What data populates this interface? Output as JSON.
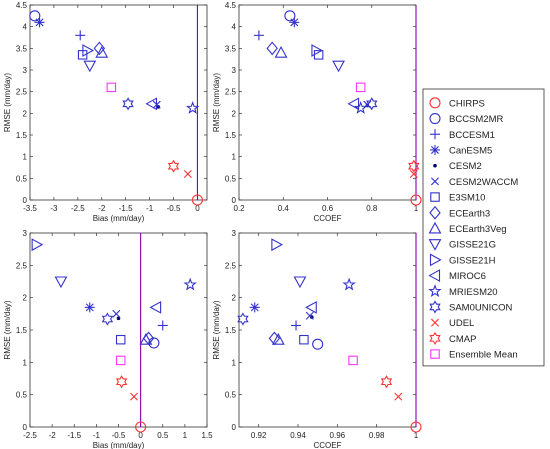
{
  "chart_data": [
    {
      "type": "scatter",
      "xlabel": "Bias (mm/day)",
      "ylabel": "RMSE (mm/day)",
      "xlim": [
        -3.5,
        0.2
      ],
      "ylim": [
        0,
        4.5
      ],
      "grid": false,
      "xticks": [
        -3.5,
        -3,
        -2.5,
        -2,
        -1.5,
        -1,
        -0.5,
        0
      ],
      "xtick_labels": [
        "-3.5",
        "-3",
        "-2.5",
        "-2",
        "-1.5",
        "-1",
        "-0.5",
        "0"
      ],
      "yticks": [
        0,
        0.5,
        1,
        1.5,
        2,
        2.5,
        3,
        3.5,
        4,
        4.5
      ],
      "ytick_labels": [
        "0",
        "0.5",
        "1",
        "1.5",
        "2",
        "2.5",
        "3",
        "3.5",
        "4",
        "4.5"
      ],
      "refline": {
        "axis": "x",
        "value": 0
      },
      "points": {
        "CHIRPS": [
          0,
          0
        ],
        "BCCSM2MR": [
          -3.4,
          4.25
        ],
        "BCCESM1": [
          -2.45,
          3.8
        ],
        "CanESM5": [
          -3.3,
          4.1
        ],
        "CESM2": [
          -0.82,
          2.15
        ],
        "CESM2WACCM": [
          -0.85,
          2.2
        ],
        "E3SM10": [
          -2.4,
          3.35
        ],
        "ECEarth3": [
          -2.05,
          3.5
        ],
        "ECEarth3Veg": [
          -2.0,
          3.4
        ],
        "GISSE21G": [
          -2.25,
          3.1
        ],
        "GISSE21H": [
          -2.3,
          3.45
        ],
        "MIROC6": [
          -0.95,
          2.22
        ],
        "MRIESM20": [
          -0.1,
          2.12
        ],
        "SAM0UNICON": [
          -1.45,
          2.22
        ],
        "UDEL": [
          -0.2,
          0.6
        ],
        "CMAP": [
          -0.5,
          0.78
        ],
        "Ensemble Mean": [
          -1.8,
          2.6
        ]
      }
    },
    {
      "type": "scatter",
      "xlabel": "CCOEF",
      "ylabel": "RMSE (mm/day)",
      "xlim": [
        0.2,
        1
      ],
      "ylim": [
        0,
        4.5
      ],
      "grid": false,
      "xticks": [
        0.2,
        0.4,
        0.6,
        0.8,
        1
      ],
      "xtick_labels": [
        "0.2",
        "0.4",
        "0.6",
        "0.8",
        "1"
      ],
      "yticks": [
        0,
        0.5,
        1,
        1.5,
        2,
        2.5,
        3,
        3.5,
        4,
        4.5
      ],
      "ytick_labels": [
        "0",
        "0.5",
        "1",
        "1.5",
        "2",
        "2.5",
        "3",
        "3.5",
        "4",
        "4.5"
      ],
      "refline": {
        "axis": "x",
        "value": 1
      },
      "points": {
        "CHIRPS": [
          1,
          0
        ],
        "BCCSM2MR": [
          0.43,
          4.25
        ],
        "BCCESM1": [
          0.29,
          3.8
        ],
        "CanESM5": [
          0.45,
          4.1
        ],
        "CESM2": [
          0.78,
          2.18
        ],
        "CESM2WACCM": [
          0.78,
          2.2
        ],
        "E3SM10": [
          0.56,
          3.35
        ],
        "ECEarth3": [
          0.35,
          3.5
        ],
        "ECEarth3Veg": [
          0.39,
          3.4
        ],
        "GISSE21G": [
          0.65,
          3.1
        ],
        "GISSE21H": [
          0.55,
          3.45
        ],
        "MIROC6": [
          0.72,
          2.22
        ],
        "MRIESM20": [
          0.75,
          2.12
        ],
        "SAM0UNICON": [
          0.8,
          2.22
        ],
        "UDEL": [
          0.99,
          0.6
        ],
        "CMAP": [
          0.99,
          0.78
        ],
        "Ensemble Mean": [
          0.75,
          2.6
        ]
      }
    },
    {
      "type": "scatter",
      "xlabel": "Bias (mm/day)",
      "ylabel": "RMSE (mm/day)",
      "xlim": [
        -2.5,
        1.5
      ],
      "ylim": [
        0,
        3
      ],
      "grid": false,
      "xticks": [
        -2.5,
        -2,
        -1.5,
        -1,
        -0.5,
        0,
        0.5,
        1,
        1.5
      ],
      "xtick_labels": [
        "-2.5",
        "-2",
        "-1.5",
        "-1",
        "-0.5",
        "0",
        "0.5",
        "1",
        "1.5"
      ],
      "yticks": [
        0,
        0.5,
        1,
        1.5,
        2,
        2.5,
        3
      ],
      "ytick_labels": [
        "0",
        "0.5",
        "1",
        "1.5",
        "2",
        "2.5",
        "3"
      ],
      "refline": {
        "axis": "x",
        "value": 0
      },
      "points": {
        "CHIRPS": [
          0,
          0
        ],
        "BCCSM2MR": [
          0.3,
          1.3
        ],
        "BCCESM1": [
          0.5,
          1.57
        ],
        "CanESM5": [
          -1.15,
          1.85
        ],
        "CESM2": [
          -0.5,
          1.68
        ],
        "CESM2WACCM": [
          -0.55,
          1.75
        ],
        "E3SM10": [
          -0.45,
          1.35
        ],
        "ECEarth3": [
          0.18,
          1.37
        ],
        "ECEarth3Veg": [
          0.12,
          1.35
        ],
        "GISSE21G": [
          -1.8,
          2.25
        ],
        "GISSE21H": [
          -2.35,
          2.82
        ],
        "MIROC6": [
          0.35,
          1.85
        ],
        "MRIESM20": [
          1.12,
          2.2
        ],
        "SAM0UNICON": [
          -0.75,
          1.67
        ],
        "UDEL": [
          -0.15,
          0.47
        ],
        "CMAP": [
          -0.43,
          0.7
        ],
        "Ensemble Mean": [
          -0.45,
          1.03
        ]
      }
    },
    {
      "type": "scatter",
      "xlabel": "CCOEF",
      "ylabel": "RMSE (mm/day)",
      "xlim": [
        0.91,
        1.0
      ],
      "ylim": [
        0,
        3
      ],
      "grid": false,
      "xticks": [
        0.92,
        0.94,
        0.96,
        0.98,
        1
      ],
      "xtick_labels": [
        "0.92",
        "0.94",
        "0.96",
        "0.98",
        "1"
      ],
      "yticks": [
        0,
        0.5,
        1,
        1.5,
        2,
        2.5,
        3
      ],
      "ytick_labels": [
        "0",
        "0.5",
        "1",
        "1.5",
        "2",
        "2.5",
        "3"
      ],
      "refline": {
        "axis": "x",
        "value": 1
      },
      "points": {
        "CHIRPS": [
          1.0,
          0
        ],
        "BCCSM2MR": [
          0.95,
          1.28
        ],
        "BCCESM1": [
          0.939,
          1.57
        ],
        "CanESM5": [
          0.918,
          1.85
        ],
        "CESM2": [
          0.947,
          1.7
        ],
        "CESM2WACCM": [
          0.946,
          1.72
        ],
        "E3SM10": [
          0.943,
          1.35
        ],
        "ECEarth3": [
          0.928,
          1.37
        ],
        "ECEarth3Veg": [
          0.93,
          1.35
        ],
        "GISSE21G": [
          0.941,
          2.25
        ],
        "GISSE21H": [
          0.929,
          2.82
        ],
        "MIROC6": [
          0.947,
          1.85
        ],
        "MRIESM20": [
          0.966,
          2.2
        ],
        "SAM0UNICON": [
          0.912,
          1.67
        ],
        "UDEL": [
          0.991,
          0.47
        ],
        "CMAP": [
          0.985,
          0.7
        ],
        "Ensemble Mean": [
          0.968,
          1.03
        ]
      }
    }
  ],
  "legend": {
    "placement": "right",
    "items": [
      {
        "label": "CHIRPS",
        "marker": "circle",
        "color": "#ff3333"
      },
      {
        "label": "BCCSM2MR",
        "marker": "circle",
        "color": "#3333cc"
      },
      {
        "label": "BCCESM1",
        "marker": "plus",
        "color": "#3333cc"
      },
      {
        "label": "CanESM5",
        "marker": "asterisk",
        "color": "#3333cc"
      },
      {
        "label": "CESM2",
        "marker": "dot",
        "color": "#000066"
      },
      {
        "label": "CESM2WACCM",
        "marker": "x",
        "color": "#3333cc"
      },
      {
        "label": "E3SM10",
        "marker": "square",
        "color": "#3333cc"
      },
      {
        "label": "ECEarth3",
        "marker": "diamond",
        "color": "#3333cc"
      },
      {
        "label": "ECEarth3Veg",
        "marker": "triangle-up",
        "color": "#3333cc"
      },
      {
        "label": "GISSE21G",
        "marker": "triangle-down",
        "color": "#3333cc"
      },
      {
        "label": "GISSE21H",
        "marker": "triangle-right",
        "color": "#3333cc"
      },
      {
        "label": "MIROC6",
        "marker": "triangle-left",
        "color": "#3333cc"
      },
      {
        "label": "MRIESM20",
        "marker": "pentagram",
        "color": "#3333cc"
      },
      {
        "label": "SAM0UNICON",
        "marker": "hexagram",
        "color": "#3333cc"
      },
      {
        "label": "UDEL",
        "marker": "x",
        "color": "#ff3333"
      },
      {
        "label": "CMAP",
        "marker": "hexagram",
        "color": "#ff3333"
      },
      {
        "label": "Ensemble Mean",
        "marker": "square",
        "color": "#ff33ff"
      }
    ]
  },
  "colors": {
    "refline": "#8800aa",
    "axis": "#333333"
  }
}
